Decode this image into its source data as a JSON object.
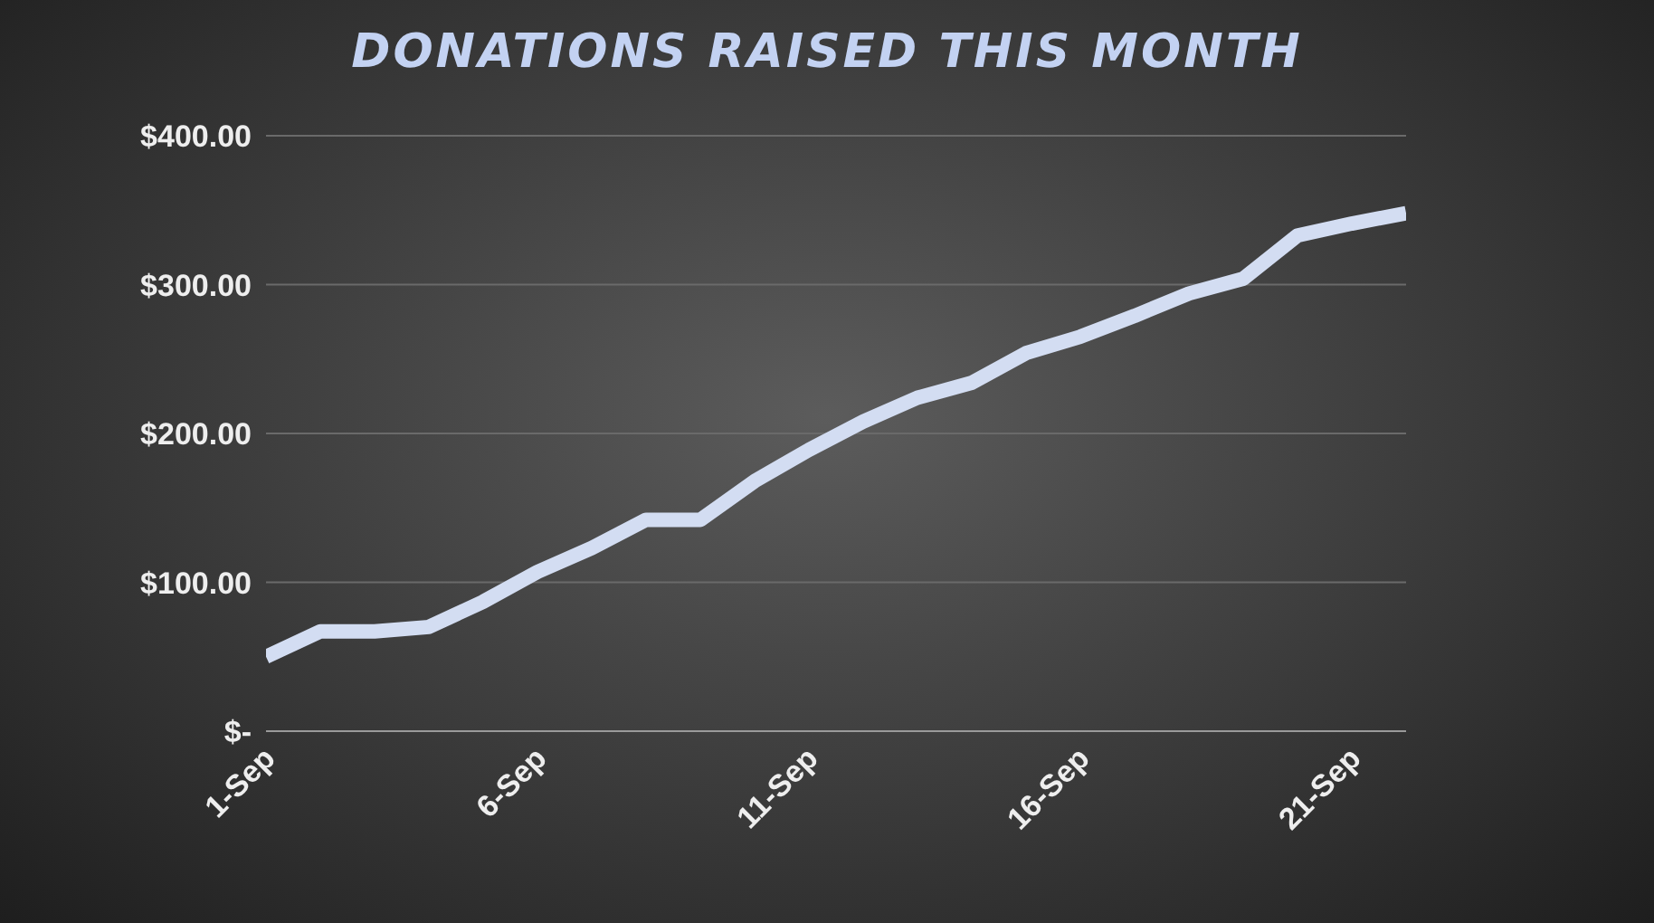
{
  "chart_data": {
    "type": "line",
    "title": "DONATIONS RAISED THIS MONTH",
    "categories": [
      "1-Sep",
      null,
      null,
      null,
      null,
      "6-Sep",
      null,
      null,
      null,
      null,
      "11-Sep",
      null,
      null,
      null,
      null,
      "16-Sep",
      null,
      null,
      null,
      null,
      "21-Sep",
      null
    ],
    "series": [
      {
        "color": "#d3ddf2",
        "values": [
          50,
          67,
          67,
          70,
          87,
          107,
          123,
          142,
          142,
          168,
          189,
          208,
          224,
          234,
          254,
          265,
          279,
          294,
          304,
          333,
          341,
          348
        ]
      }
    ],
    "ylim": [
      0,
      400
    ],
    "yticks": [
      {
        "value": 0,
        "label": "$-"
      },
      {
        "value": 100,
        "label": "$100.00"
      },
      {
        "value": 200,
        "label": "$200.00"
      },
      {
        "value": 300,
        "label": "$300.00"
      },
      {
        "value": 400,
        "label": "$400.00"
      }
    ],
    "grid": "y",
    "legend": false,
    "marker": "none",
    "line_style": "solid"
  }
}
